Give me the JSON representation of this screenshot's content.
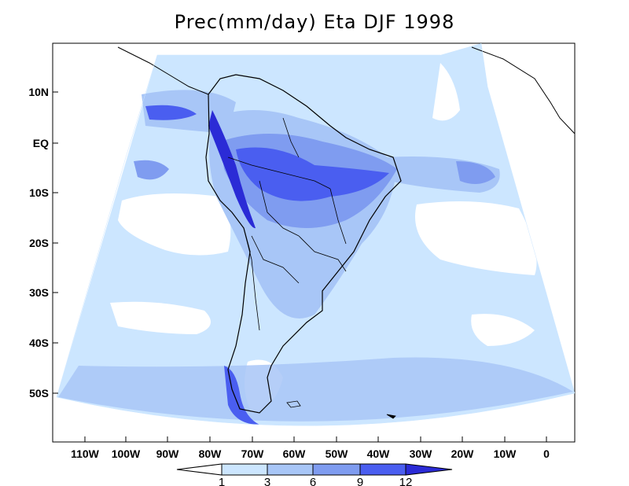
{
  "title": "Prec(mm/day) Eta DJF 1998",
  "colors": {
    "background": "#ffffff",
    "level_1": "#cce6ff",
    "level_3": "#a8c6f7",
    "level_6": "#7f9cf0",
    "level_9": "#4a5ef0",
    "level_12": "#2b2bd6",
    "coast": "#000000",
    "domain_edge": "#000000"
  },
  "lat_labels": [
    "10N",
    "EQ",
    "10S",
    "20S",
    "30S",
    "40S",
    "50S"
  ],
  "lon_labels": [
    "110W",
    "100W",
    "90W",
    "80W",
    "70W",
    "60W",
    "50W",
    "40W",
    "30W",
    "20W",
    "10W",
    "0"
  ],
  "colorbar": {
    "levels": [
      "1",
      "3",
      "6",
      "9",
      "12"
    ]
  }
}
